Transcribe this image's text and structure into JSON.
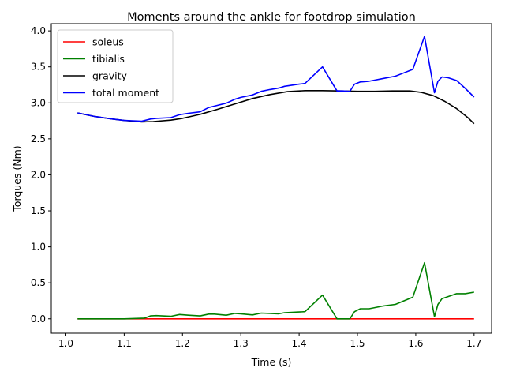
{
  "chart_data": {
    "type": "line",
    "title": "Moments around the ankle for footdrop simulation",
    "xlabel": "Time (s)",
    "ylabel": "Torques (Nm)",
    "xlim": [
      0.975,
      1.73
    ],
    "ylim": [
      -0.2,
      4.1
    ],
    "xticks": [
      1.0,
      1.1,
      1.2,
      1.3,
      1.4,
      1.5,
      1.6,
      1.7
    ],
    "xtick_labels": [
      "1.0",
      "1.1",
      "1.2",
      "1.3",
      "1.4",
      "1.5",
      "1.6",
      "1.7"
    ],
    "yticks": [
      0.0,
      0.5,
      1.0,
      1.5,
      2.0,
      2.5,
      3.0,
      3.5,
      4.0
    ],
    "ytick_labels": [
      "0.0",
      "0.5",
      "1.0",
      "1.5",
      "2.0",
      "2.5",
      "3.0",
      "3.5",
      "4.0"
    ],
    "grid": false,
    "legend_position": "upper-left",
    "series": [
      {
        "name": "soleus",
        "color": "#ff0000",
        "x": [
          1.02,
          1.7
        ],
        "y": [
          0.0,
          0.0
        ]
      },
      {
        "name": "tibialis",
        "color": "#008000",
        "x": [
          1.02,
          1.1,
          1.135,
          1.145,
          1.155,
          1.18,
          1.195,
          1.21,
          1.23,
          1.245,
          1.255,
          1.275,
          1.29,
          1.3,
          1.32,
          1.335,
          1.35,
          1.365,
          1.375,
          1.4,
          1.41,
          1.44,
          1.465,
          1.475,
          1.487,
          1.495,
          1.505,
          1.52,
          1.545,
          1.565,
          1.595,
          1.615,
          1.632,
          1.638,
          1.645,
          1.67,
          1.685,
          1.7
        ],
        "y": [
          0.0,
          0.0,
          0.01,
          0.04,
          0.045,
          0.035,
          0.06,
          0.05,
          0.04,
          0.065,
          0.065,
          0.05,
          0.075,
          0.07,
          0.055,
          0.08,
          0.075,
          0.07,
          0.085,
          0.095,
          0.1,
          0.33,
          0.0,
          0.0,
          0.0,
          0.1,
          0.14,
          0.14,
          0.18,
          0.2,
          0.3,
          0.78,
          0.03,
          0.2,
          0.28,
          0.35,
          0.35,
          0.37
        ]
      },
      {
        "name": "gravity",
        "color": "#000000",
        "x": [
          1.02,
          1.05,
          1.08,
          1.1,
          1.13,
          1.15,
          1.18,
          1.2,
          1.23,
          1.26,
          1.29,
          1.32,
          1.35,
          1.38,
          1.41,
          1.44,
          1.47,
          1.5,
          1.53,
          1.56,
          1.59,
          1.61,
          1.63,
          1.65,
          1.67,
          1.69,
          1.7
        ],
        "y": [
          2.86,
          2.81,
          2.775,
          2.755,
          2.735,
          2.74,
          2.76,
          2.785,
          2.84,
          2.91,
          2.985,
          3.06,
          3.115,
          3.155,
          3.17,
          3.17,
          3.165,
          3.16,
          3.16,
          3.165,
          3.165,
          3.145,
          3.1,
          3.02,
          2.92,
          2.79,
          2.71
        ]
      },
      {
        "name": "total moment",
        "color": "#0000ff",
        "x": [
          1.02,
          1.05,
          1.08,
          1.1,
          1.13,
          1.145,
          1.155,
          1.18,
          1.195,
          1.21,
          1.23,
          1.245,
          1.255,
          1.275,
          1.29,
          1.3,
          1.32,
          1.335,
          1.35,
          1.365,
          1.375,
          1.4,
          1.41,
          1.44,
          1.465,
          1.475,
          1.487,
          1.495,
          1.505,
          1.52,
          1.545,
          1.565,
          1.595,
          1.615,
          1.632,
          1.638,
          1.645,
          1.655,
          1.67,
          1.685,
          1.7
        ],
        "y": [
          2.86,
          2.81,
          2.775,
          2.755,
          2.745,
          2.775,
          2.785,
          2.795,
          2.835,
          2.855,
          2.875,
          2.935,
          2.955,
          2.995,
          3.05,
          3.075,
          3.11,
          3.16,
          3.185,
          3.205,
          3.23,
          3.26,
          3.27,
          3.5,
          3.165,
          3.165,
          3.16,
          3.26,
          3.29,
          3.3,
          3.34,
          3.37,
          3.465,
          3.925,
          3.14,
          3.3,
          3.36,
          3.35,
          3.31,
          3.2,
          3.08
        ]
      }
    ]
  }
}
